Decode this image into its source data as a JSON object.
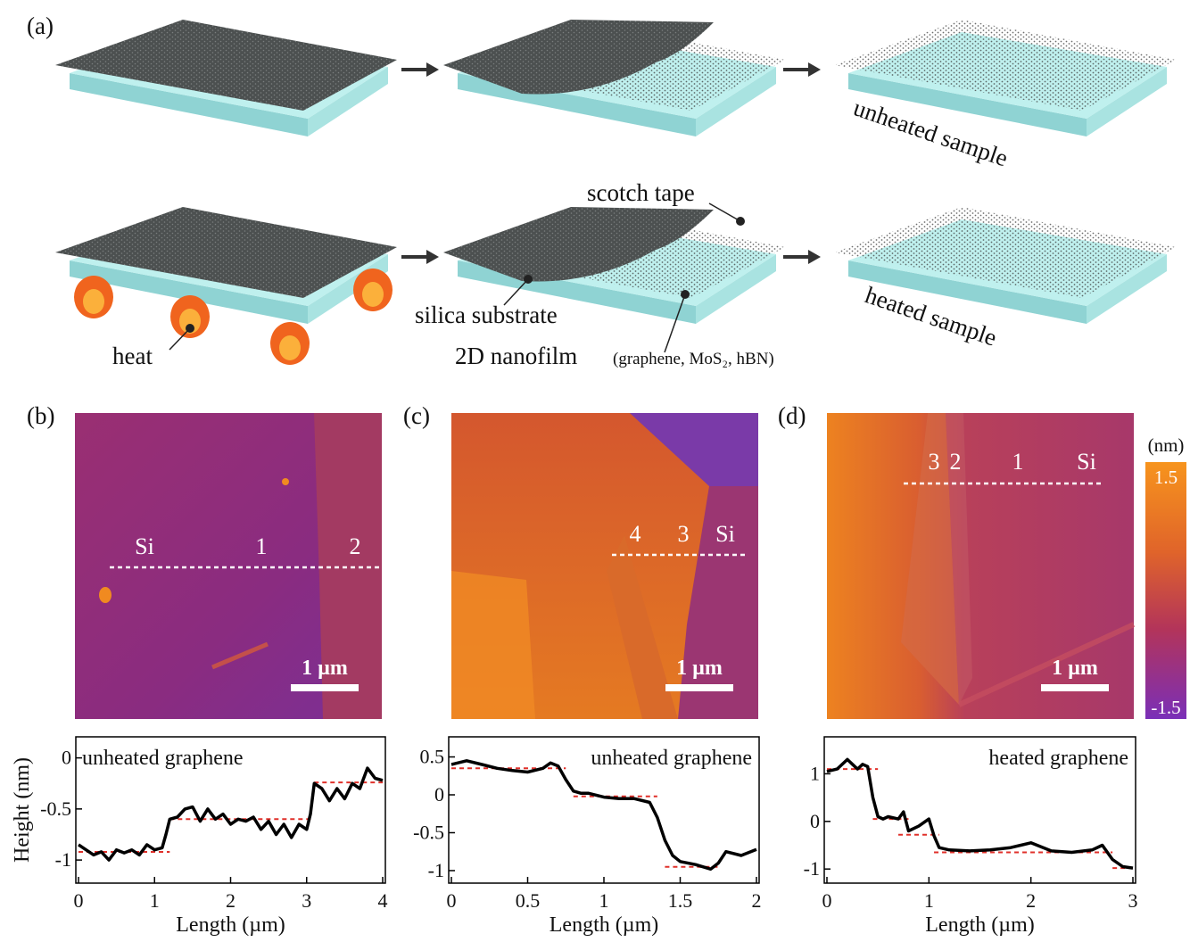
{
  "panel_labels": [
    "(a)",
    "(b)",
    "(c)",
    "(d)"
  ],
  "schematic": {
    "unheated_label": "unheated sample",
    "heated_label": "heated sample",
    "tape": "scotch tape",
    "substrate": "silica substrate",
    "heat": "heat",
    "film": "2D nanofilm",
    "film_detail": "(graphene, MoS₂, hBN)"
  },
  "afm": [
    {
      "scale_bar": "1 µm",
      "markers": [
        "Si",
        "1",
        "2"
      ]
    },
    {
      "scale_bar": "1 µm",
      "markers": [
        "4",
        "3",
        "Si"
      ]
    },
    {
      "scale_bar": "1 µm",
      "markers": [
        "3",
        "2",
        "1",
        "Si"
      ]
    }
  ],
  "colorbar": {
    "unit": "(nm)",
    "max_label": "1.5",
    "min_label": "-1.5"
  },
  "chart_data": [
    {
      "type": "line",
      "annotation": "unheated graphene",
      "xlabel": "Length (µm)",
      "ylabel": "Height (nm)",
      "x": [
        0,
        0.1,
        0.2,
        0.3,
        0.4,
        0.5,
        0.6,
        0.7,
        0.8,
        0.9,
        1.0,
        1.1,
        1.15,
        1.2,
        1.3,
        1.4,
        1.5,
        1.6,
        1.7,
        1.8,
        1.9,
        2.0,
        2.1,
        2.2,
        2.3,
        2.4,
        2.5,
        2.6,
        2.7,
        2.8,
        2.9,
        3.0,
        3.05,
        3.1,
        3.2,
        3.3,
        3.4,
        3.5,
        3.6,
        3.7,
        3.8,
        3.9,
        4.0
      ],
      "series": [
        {
          "color": "#000000",
          "values": [
            -0.85,
            -0.9,
            -0.95,
            -0.92,
            -1.0,
            -0.9,
            -0.93,
            -0.9,
            -0.95,
            -0.85,
            -0.9,
            -0.88,
            -0.75,
            -0.6,
            -0.58,
            -0.5,
            -0.48,
            -0.62,
            -0.5,
            -0.6,
            -0.55,
            -0.65,
            -0.6,
            -0.62,
            -0.58,
            -0.7,
            -0.62,
            -0.75,
            -0.65,
            -0.78,
            -0.65,
            -0.7,
            -0.55,
            -0.25,
            -0.3,
            -0.42,
            -0.3,
            -0.4,
            -0.25,
            -0.3,
            -0.1,
            -0.2,
            -0.22
          ]
        }
      ],
      "reference_color": "#e0302a",
      "reference_levels": [
        {
          "x": [
            0,
            1.2
          ],
          "y": -0.92
        },
        {
          "x": [
            1.2,
            3.1
          ],
          "y": -0.6
        },
        {
          "x": [
            3.1,
            4.0
          ],
          "y": -0.24
        }
      ],
      "xlim": [
        0,
        4
      ],
      "xticks": [
        0,
        1,
        2,
        3,
        4
      ],
      "ylim": [
        -1.2,
        0.18
      ],
      "yticks": [
        0,
        -0.5,
        -1
      ]
    },
    {
      "type": "line",
      "annotation": "unheated graphene",
      "xlabel": "Length (µm)",
      "x": [
        0,
        0.1,
        0.2,
        0.3,
        0.4,
        0.5,
        0.6,
        0.65,
        0.7,
        0.75,
        0.8,
        0.85,
        0.9,
        1.0,
        1.1,
        1.2,
        1.3,
        1.35,
        1.4,
        1.45,
        1.5,
        1.6,
        1.7,
        1.75,
        1.8,
        1.9,
        2.0
      ],
      "series": [
        {
          "color": "#000000",
          "values": [
            0.4,
            0.45,
            0.4,
            0.35,
            0.32,
            0.3,
            0.35,
            0.42,
            0.38,
            0.2,
            0.05,
            0.02,
            0.02,
            -0.03,
            -0.05,
            -0.05,
            -0.1,
            -0.3,
            -0.6,
            -0.8,
            -0.88,
            -0.92,
            -0.98,
            -0.9,
            -0.75,
            -0.8,
            -0.72
          ]
        }
      ],
      "reference_color": "#e0302a",
      "reference_levels": [
        {
          "x": [
            0,
            0.75
          ],
          "y": 0.35
        },
        {
          "x": [
            0.8,
            1.35
          ],
          "y": -0.02
        },
        {
          "x": [
            1.4,
            1.75
          ],
          "y": -0.95
        }
      ],
      "xlim": [
        0,
        2
      ],
      "xticks": [
        0,
        0.5,
        1,
        1.5,
        2
      ],
      "ylim": [
        -1.13,
        0.73
      ],
      "yticks": [
        0.5,
        0,
        -0.5,
        -1
      ]
    },
    {
      "type": "line",
      "annotation": "heated graphene",
      "xlabel": "Length (µm)",
      "x": [
        0,
        0.1,
        0.2,
        0.25,
        0.3,
        0.35,
        0.4,
        0.45,
        0.5,
        0.55,
        0.6,
        0.7,
        0.75,
        0.8,
        0.9,
        1.0,
        1.05,
        1.1,
        1.2,
        1.4,
        1.6,
        1.8,
        2.0,
        2.2,
        2.4,
        2.6,
        2.7,
        2.8,
        2.9,
        3.0
      ],
      "series": [
        {
          "color": "#000000",
          "values": [
            1.05,
            1.1,
            1.3,
            1.2,
            1.1,
            1.2,
            1.15,
            0.5,
            0.1,
            0.05,
            0.1,
            0.05,
            0.2,
            -0.2,
            -0.1,
            0.05,
            -0.3,
            -0.55,
            -0.6,
            -0.62,
            -0.6,
            -0.55,
            -0.45,
            -0.62,
            -0.65,
            -0.6,
            -0.5,
            -0.8,
            -0.95,
            -0.98
          ]
        }
      ],
      "reference_color": "#e0302a",
      "reference_levels": [
        {
          "x": [
            0,
            0.5
          ],
          "y": 1.1
        },
        {
          "x": [
            0.45,
            0.8
          ],
          "y": 0.05
        },
        {
          "x": [
            0.7,
            1.1
          ],
          "y": -0.28
        },
        {
          "x": [
            1.05,
            2.8
          ],
          "y": -0.65
        },
        {
          "x": [
            2.8,
            3.0
          ],
          "y": -0.98
        }
      ],
      "xlim": [
        0,
        3
      ],
      "xticks": [
        0,
        1,
        2,
        3
      ],
      "ylim": [
        -1.24,
        1.72
      ],
      "yticks": [
        1,
        0,
        -1
      ]
    }
  ]
}
